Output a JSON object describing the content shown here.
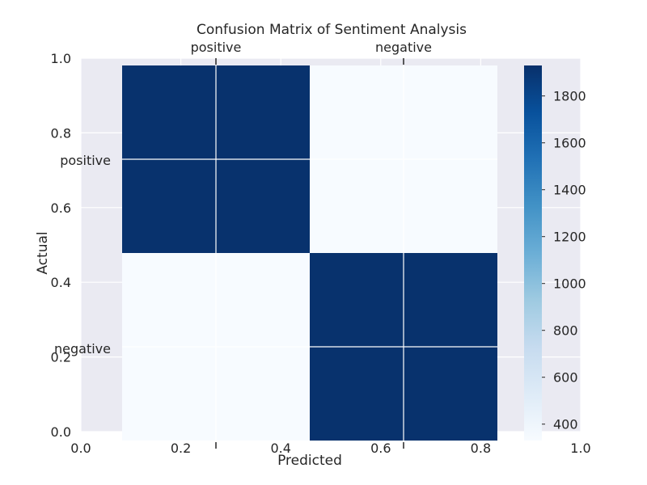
{
  "chart_data": {
    "type": "heatmap",
    "title": "Confusion Matrix of Sentiment Analysis",
    "xlabel": "Predicted",
    "ylabel": "Actual",
    "row_labels": [
      "positive",
      "negative"
    ],
    "col_labels": [
      "positive",
      "negative"
    ],
    "values": [
      [
        1920,
        330
      ],
      [
        330,
        1920
      ]
    ],
    "frame_x_ticks": [
      "0.0",
      "0.2",
      "0.4",
      "0.6",
      "0.8",
      "1.0"
    ],
    "frame_y_ticks": [
      "0.0",
      "0.2",
      "0.4",
      "0.6",
      "0.8",
      "1.0"
    ],
    "colorbar": {
      "range": [
        330,
        1930
      ],
      "ticks": [
        400,
        600,
        800,
        1000,
        1200,
        1400,
        1600,
        1800
      ],
      "colormap": [
        "#f7fbff",
        "#deebf7",
        "#c6dbef",
        "#9ecae1",
        "#6baed6",
        "#4292c6",
        "#2171b5",
        "#08519c",
        "#08306b"
      ]
    },
    "grid": true,
    "colors": {
      "axes_background": "#eaeaf2",
      "grid": "#ffffff",
      "text": "#262626"
    }
  }
}
